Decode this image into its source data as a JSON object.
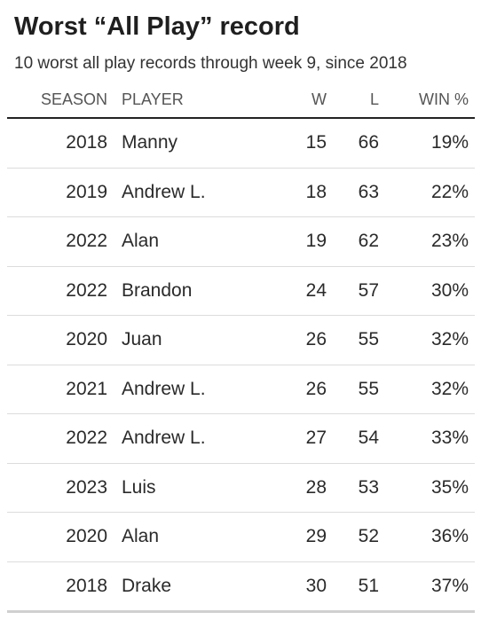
{
  "chart_data": {
    "type": "table",
    "title": "Worst “All Play” record",
    "subtitle": "10 worst all play records through week 9, since 2018",
    "columns": [
      "SEASON",
      "PLAYER",
      "W",
      "L",
      "WIN %"
    ],
    "rows": [
      {
        "season": "2018",
        "player": "Manny",
        "w": "15",
        "l": "66",
        "pct": "19%"
      },
      {
        "season": "2019",
        "player": "Andrew L.",
        "w": "18",
        "l": "63",
        "pct": "22%"
      },
      {
        "season": "2022",
        "player": "Alan",
        "w": "19",
        "l": "62",
        "pct": "23%"
      },
      {
        "season": "2022",
        "player": "Brandon",
        "w": "24",
        "l": "57",
        "pct": "30%"
      },
      {
        "season": "2020",
        "player": "Juan",
        "w": "26",
        "l": "55",
        "pct": "32%"
      },
      {
        "season": "2021",
        "player": "Andrew L.",
        "w": "26",
        "l": "55",
        "pct": "32%"
      },
      {
        "season": "2022",
        "player": "Andrew L.",
        "w": "27",
        "l": "54",
        "pct": "33%"
      },
      {
        "season": "2023",
        "player": "Luis",
        "w": "28",
        "l": "53",
        "pct": "35%"
      },
      {
        "season": "2020",
        "player": "Alan",
        "w": "29",
        "l": "52",
        "pct": "36%"
      },
      {
        "season": "2018",
        "player": "Drake",
        "w": "30",
        "l": "51",
        "pct": "37%"
      }
    ]
  }
}
